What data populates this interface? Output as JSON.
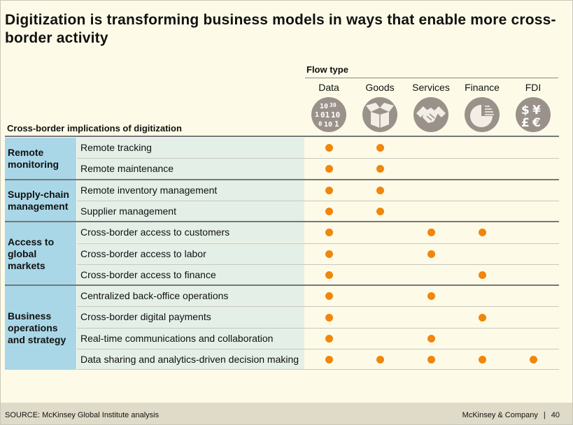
{
  "title": "Digitization is transforming business models in ways that enable more cross-border activity",
  "flow_type_label": "Flow type",
  "implications_label": "Cross-border implications of digitization",
  "columns": [
    {
      "label": "Data",
      "icon": "binary-data-icon"
    },
    {
      "label": "Goods",
      "icon": "open-box-icon"
    },
    {
      "label": "Services",
      "icon": "handshake-icon"
    },
    {
      "label": "Finance",
      "icon": "pie-chart-icon"
    },
    {
      "label": "FDI",
      "icon": "currency-symbols-icon"
    }
  ],
  "groups": [
    {
      "label": "Remote monitoring",
      "rows": [
        {
          "label": "Remote tracking",
          "flows": [
            1,
            1,
            0,
            0,
            0
          ]
        },
        {
          "label": "Remote maintenance",
          "flows": [
            1,
            1,
            0,
            0,
            0
          ]
        }
      ]
    },
    {
      "label": "Supply-chain management",
      "rows": [
        {
          "label": "Remote inventory  management",
          "flows": [
            1,
            1,
            0,
            0,
            0
          ]
        },
        {
          "label": "Supplier management",
          "flows": [
            1,
            1,
            0,
            0,
            0
          ]
        }
      ]
    },
    {
      "label": "Access to global markets",
      "rows": [
        {
          "label": "Cross-border access to customers",
          "flows": [
            1,
            0,
            1,
            1,
            0
          ]
        },
        {
          "label": "Cross-border access to labor",
          "flows": [
            1,
            0,
            1,
            0,
            0
          ]
        },
        {
          "label": "Cross-border access to finance",
          "flows": [
            1,
            0,
            0,
            1,
            0
          ]
        }
      ]
    },
    {
      "label": "Business operations and strategy",
      "rows": [
        {
          "label": "Centralized back-office operations",
          "flows": [
            1,
            0,
            1,
            0,
            0
          ]
        },
        {
          "label": "Cross-border digital payments",
          "flows": [
            1,
            0,
            0,
            1,
            0
          ]
        },
        {
          "label": "Real-time communications and collaboration",
          "flows": [
            1,
            0,
            1,
            0,
            0
          ]
        },
        {
          "label": "Data sharing and analytics-driven  decision making",
          "flows": [
            1,
            1,
            1,
            1,
            1
          ]
        }
      ]
    }
  ],
  "colors": {
    "dot": "#f0860c",
    "group_bg": "#a9d7e7",
    "row_bg": "#e4efe8",
    "icon_bg": "#9a928a"
  },
  "footer": {
    "source": "SOURCE: McKinsey Global Institute analysis",
    "company": "McKinsey & Company",
    "page": "40"
  }
}
